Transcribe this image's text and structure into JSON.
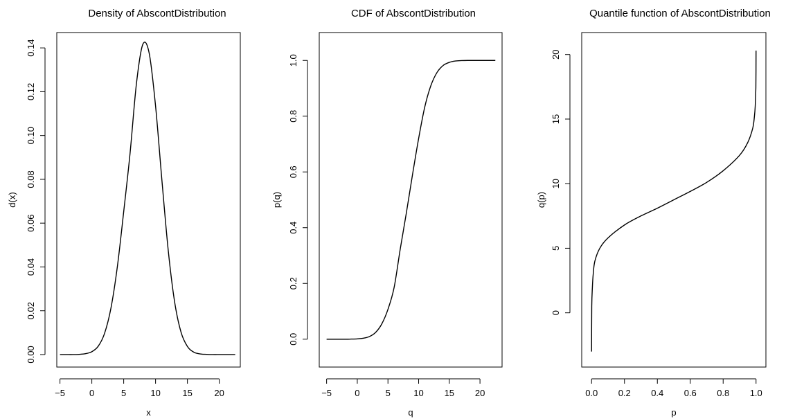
{
  "colors": {
    "background": "#ffffff",
    "line": "#000000",
    "axis": "#000000"
  },
  "chart_data": [
    {
      "type": "line",
      "title": "Density of AbscontDistribution",
      "xlabel": "x",
      "ylabel": "d(x)",
      "xlim": [
        -5.5,
        23.3
      ],
      "ylim": [
        -0.0057,
        0.147
      ],
      "xticks": [
        -5,
        0,
        5,
        10,
        15,
        20
      ],
      "xtick_labels": [
        "−5",
        "0",
        "5",
        "10",
        "15",
        "20"
      ],
      "yticks": [
        0,
        0.02,
        0.04,
        0.06,
        0.08,
        0.1,
        0.12,
        0.14
      ],
      "ytick_labels": [
        "0.00",
        "0.02",
        "0.04",
        "0.06",
        "0.08",
        "0.10",
        "0.12",
        "0.14"
      ],
      "grid": false,
      "legend": "none",
      "series": [
        {
          "x": [
            -5,
            -4,
            -3,
            -2,
            -1,
            0,
            1,
            2,
            3,
            4,
            5,
            6,
            7,
            8,
            9,
            10,
            11,
            12,
            13,
            14,
            15,
            16,
            17,
            18,
            19,
            20,
            21,
            22,
            22.5
          ],
          "y": [
            0.0,
            0.0,
            0.0,
            0.0001,
            0.0004,
            0.0013,
            0.0038,
            0.0097,
            0.0212,
            0.04,
            0.0652,
            0.0919,
            0.1237,
            0.1416,
            0.1376,
            0.1135,
            0.0795,
            0.0473,
            0.0239,
            0.0102,
            0.0037,
            0.0011,
            0.0003,
            0.0001,
            0.0,
            0.0,
            0.0,
            0.0,
            0.0
          ]
        }
      ]
    },
    {
      "type": "line",
      "title": "CDF of AbscontDistribution",
      "xlabel": "q",
      "ylabel": "p(q)",
      "xlim": [
        -6.2,
        23.6
      ],
      "ylim": [
        -0.1,
        1.1
      ],
      "xticks": [
        -5,
        0,
        5,
        10,
        15,
        20
      ],
      "xtick_labels": [
        "−5",
        "0",
        "5",
        "10",
        "15",
        "20"
      ],
      "yticks": [
        0,
        0.2,
        0.4,
        0.6,
        0.8,
        1.0
      ],
      "ytick_labels": [
        "0.0",
        "0.2",
        "0.4",
        "0.6",
        "0.8",
        "1.0"
      ],
      "grid": false,
      "legend": "none",
      "series": [
        {
          "x": [
            -5,
            -2,
            -1,
            0,
            1,
            2,
            3,
            4,
            5,
            6,
            7,
            8,
            9,
            10,
            11,
            12,
            13,
            14,
            15,
            16,
            17,
            18,
            20,
            22.5
          ],
          "y": [
            0.0,
            0.0,
            0.0004,
            0.0012,
            0.0035,
            0.0096,
            0.0245,
            0.055,
            0.107,
            0.185,
            0.323,
            0.453,
            0.59,
            0.72,
            0.833,
            0.91,
            0.957,
            0.982,
            0.993,
            0.998,
            0.9995,
            1.0,
            1.0,
            1.0
          ]
        }
      ]
    },
    {
      "type": "line",
      "title": "Quantile function of AbscontDistribution",
      "xlabel": "p",
      "ylabel": "q(p)",
      "xlim": [
        -0.06,
        1.06
      ],
      "ylim": [
        -4.2,
        21.7
      ],
      "xticks": [
        0,
        0.2,
        0.4,
        0.6,
        0.8,
        1.0
      ],
      "xtick_labels": [
        "0.0",
        "0.2",
        "0.4",
        "0.6",
        "0.8",
        "1.0"
      ],
      "yticks": [
        0,
        5,
        10,
        15,
        20
      ],
      "ytick_labels": [
        "0",
        "5",
        "10",
        "15",
        "20"
      ],
      "grid": false,
      "legend": "none",
      "series": [
        {
          "x": [
            0.0,
            0.001,
            0.005,
            0.01,
            0.02,
            0.05,
            0.1,
            0.2,
            0.3,
            0.4,
            0.5,
            0.6,
            0.7,
            0.8,
            0.9,
            0.95,
            0.98,
            0.99,
            0.995,
            0.999,
            1.0
          ],
          "y": [
            -3.0,
            0.5,
            2.0,
            3.0,
            4.0,
            5.0,
            5.8,
            6.8,
            7.5,
            8.1,
            8.75,
            9.4,
            10.1,
            11.0,
            12.2,
            13.2,
            14.3,
            15.2,
            16.0,
            17.5,
            20.3
          ]
        }
      ]
    }
  ]
}
